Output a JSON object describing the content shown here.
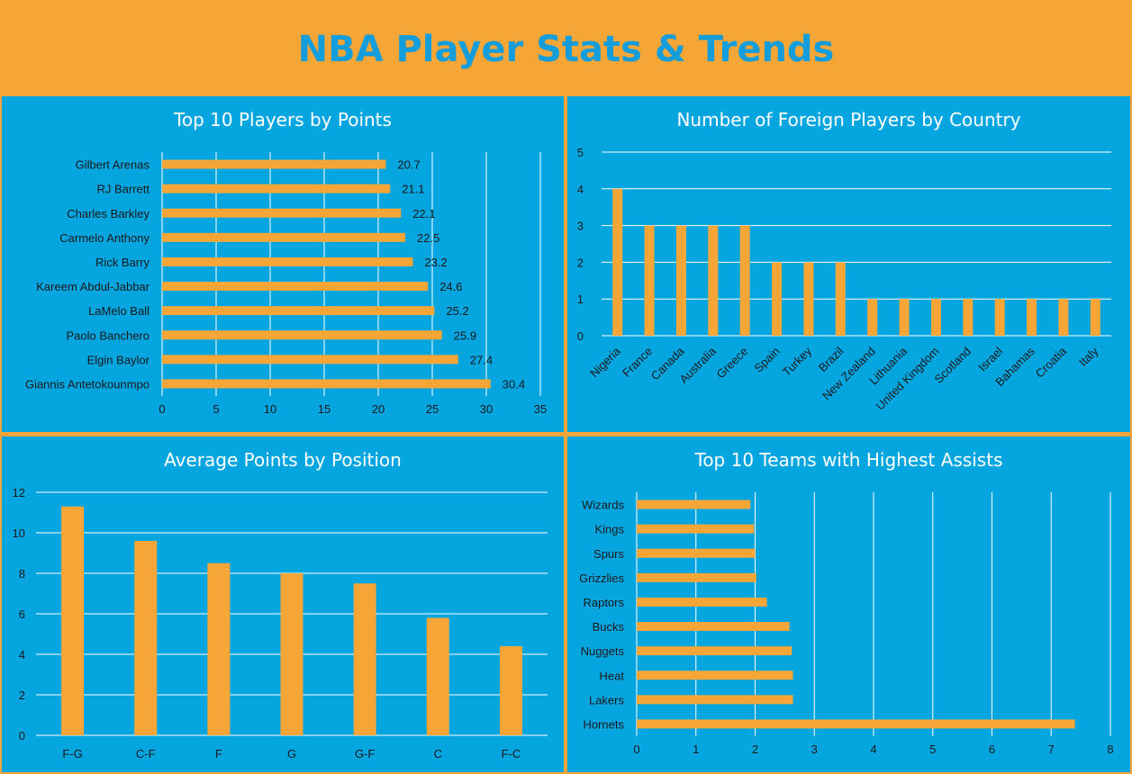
{
  "header": {
    "title": "NBA Player Stats & Trends"
  },
  "colors": {
    "background": "#05A5E0",
    "bar": "#F6A636",
    "header_bg": "#F6A636",
    "title_text": "#149DDB",
    "gridline": "#FFFFFF"
  },
  "chart_data": [
    {
      "type": "bar",
      "orientation": "horizontal",
      "title": "Top 10 Players by Points",
      "categories": [
        "Gilbert Arenas",
        "RJ Barrett",
        "Charles Barkley",
        "Carmelo Anthony",
        "Rick Barry",
        "Kareem Abdul-Jabbar",
        "LaMelo Ball",
        "Paolo Banchero",
        "Elgin Baylor",
        "Giannis Antetokounmpo"
      ],
      "values": [
        20.7,
        21.1,
        22.1,
        22.5,
        23.2,
        24.6,
        25.2,
        25.9,
        27.4,
        30.4
      ],
      "data_labels": [
        "20.7",
        "21.1",
        "22.1",
        "22.5",
        "23.2",
        "24.6",
        "25.2",
        "25.9",
        "27.4",
        "30.4"
      ],
      "xlim": [
        0,
        35
      ],
      "xticks": [
        "0",
        "5",
        "10",
        "15",
        "20",
        "25",
        "30",
        "35"
      ],
      "grid": "vertical"
    },
    {
      "type": "bar",
      "orientation": "vertical",
      "title": "Number of Foreign Players by Country",
      "categories": [
        "Nigeria",
        "France",
        "Canada",
        "Australia",
        "Greece",
        "Spain",
        "Turkey",
        "Brazil",
        "New Zealand",
        "Lithuania",
        "United Kingdom",
        "Scotland",
        "Israel",
        "Bahamas",
        "Croatia",
        "Italy"
      ],
      "values": [
        4,
        3,
        3,
        3,
        3,
        2,
        2,
        2,
        1,
        1,
        1,
        1,
        1,
        1,
        1,
        1
      ],
      "ylim": [
        0,
        5
      ],
      "yticks": [
        "0",
        "1",
        "2",
        "3",
        "4",
        "5"
      ],
      "grid": "horizontal"
    },
    {
      "type": "bar",
      "orientation": "vertical",
      "title": "Average Points by Position",
      "categories": [
        "F-G",
        "C-F",
        "F",
        "G",
        "G-F",
        "C",
        "F-C"
      ],
      "values": [
        11.3,
        9.6,
        8.5,
        8.0,
        7.5,
        5.8,
        4.4
      ],
      "ylim": [
        0,
        12
      ],
      "yticks": [
        "0",
        "2",
        "4",
        "6",
        "8",
        "10",
        "12"
      ],
      "grid": "horizontal"
    },
    {
      "type": "bar",
      "orientation": "horizontal",
      "title": "Top 10 Teams with Highest Assists",
      "categories": [
        "Wizards",
        "Kings",
        "Spurs",
        "Grizzlies",
        "Raptors",
        "Bucks",
        "Nuggets",
        "Heat",
        "Lakers",
        "Hornets"
      ],
      "values": [
        1.92,
        1.98,
        2.0,
        2.02,
        2.2,
        2.58,
        2.62,
        2.64,
        2.64,
        7.4
      ],
      "xlim": [
        0,
        8
      ],
      "xticks": [
        "0",
        "1",
        "2",
        "3",
        "4",
        "5",
        "6",
        "7",
        "8"
      ],
      "grid": "vertical"
    }
  ]
}
